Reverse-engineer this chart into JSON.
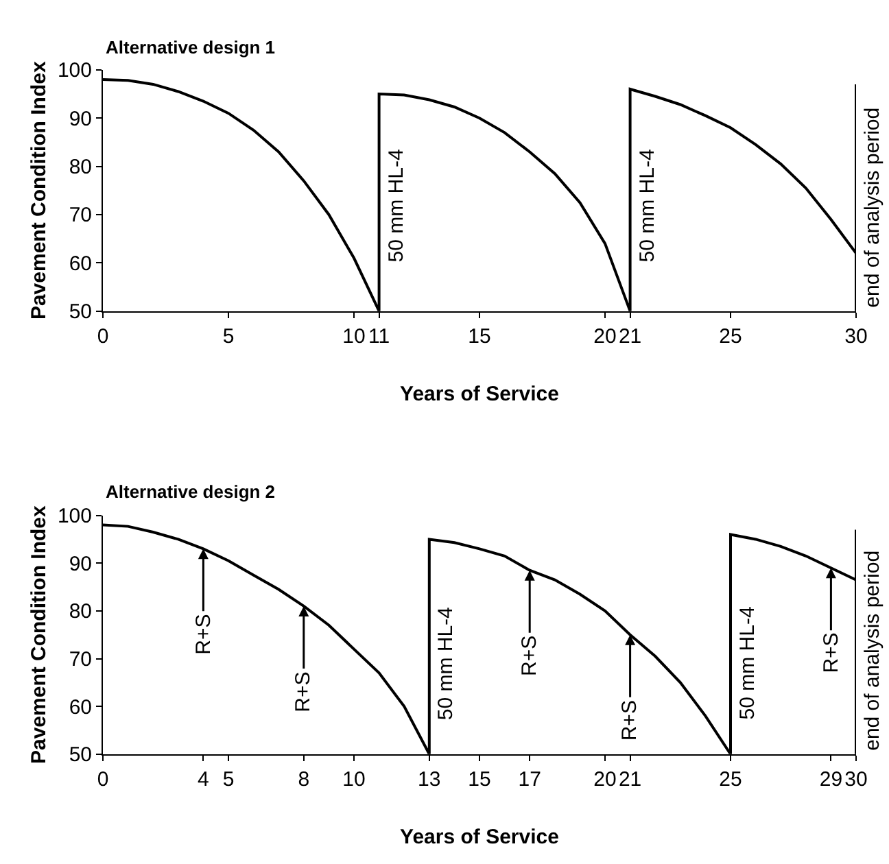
{
  "chart_data": [
    {
      "type": "line",
      "title": "Alternative design 1",
      "xlabel": "Years of Service",
      "ylabel": "Pavement Condition Index",
      "x": [
        0,
        1,
        2,
        3,
        4,
        5,
        6,
        7,
        8,
        9,
        10,
        11,
        11,
        12,
        13,
        14,
        15,
        16,
        17,
        18,
        19,
        20,
        21,
        21,
        22,
        23,
        24,
        25,
        26,
        27,
        28,
        29,
        30
      ],
      "series": [
        {
          "color": "#000000",
          "values": [
            98,
            97.8,
            97,
            95.5,
            93.5,
            91,
            87.5,
            83,
            77,
            70,
            61,
            50,
            95,
            94.8,
            93.8,
            92.3,
            90,
            87,
            83,
            78.5,
            72.5,
            64,
            50,
            96,
            94.5,
            92.8,
            90.5,
            88,
            84.5,
            80.5,
            75.5,
            69,
            62
          ]
        }
      ],
      "xlim": [
        0,
        30
      ],
      "xticks": [
        0,
        5,
        10,
        11,
        15,
        20,
        21,
        25,
        30
      ],
      "ylim": [
        50,
        100
      ],
      "yticks": [
        50,
        60,
        70,
        80,
        90,
        100
      ],
      "marker": "none",
      "line_style": "solid",
      "ref_lines": [
        {
          "axis": "x",
          "value": 30,
          "label": "end of analysis period"
        }
      ],
      "annotations": [
        {
          "text": "50 mm HL-4",
          "x": 11,
          "y": 72
        },
        {
          "text": "50 mm HL-4",
          "x": 21,
          "y": 72
        }
      ]
    },
    {
      "type": "line",
      "title": "Alternative design 2",
      "xlabel": "Years of Service",
      "ylabel": "Pavement Condition Index",
      "x": [
        0,
        1,
        2,
        3,
        4,
        5,
        6,
        7,
        8,
        9,
        10,
        11,
        12,
        13,
        13,
        14,
        15,
        16,
        17,
        18,
        19,
        20,
        21,
        22,
        23,
        24,
        25,
        25,
        26,
        27,
        28,
        29,
        30
      ],
      "series": [
        {
          "color": "#000000",
          "values": [
            98,
            97.7,
            96.5,
            95,
            93,
            90.5,
            87.5,
            84.5,
            81,
            77,
            72,
            67,
            60,
            50,
            95,
            94.3,
            93,
            91.5,
            88.5,
            86.5,
            83.5,
            80,
            75,
            70.5,
            65,
            58,
            50,
            96,
            95,
            93.5,
            91.5,
            89,
            86.5
          ]
        }
      ],
      "xlim": [
        0,
        30
      ],
      "xticks": [
        0,
        4,
        5,
        8,
        10,
        13,
        15,
        17,
        20,
        21,
        25,
        29,
        30
      ],
      "ylim": [
        50,
        100
      ],
      "yticks": [
        50,
        60,
        70,
        80,
        90,
        100
      ],
      "marker": "none",
      "line_style": "solid",
      "ref_lines": [
        {
          "axis": "x",
          "value": 30,
          "label": "end of analysis period"
        }
      ],
      "annotations": [
        {
          "text": "R+S",
          "x": 4,
          "y": 93
        },
        {
          "text": "R+S",
          "x": 8,
          "y": 81
        },
        {
          "text": "R+S",
          "x": 17,
          "y": 88.5
        },
        {
          "text": "R+S",
          "x": 21,
          "y": 75
        },
        {
          "text": "R+S",
          "x": 29,
          "y": 89
        },
        {
          "text": "50 mm HL-4",
          "x": 13,
          "y": 69
        },
        {
          "text": "50 mm HL-4",
          "x": 25,
          "y": 69
        }
      ]
    }
  ]
}
